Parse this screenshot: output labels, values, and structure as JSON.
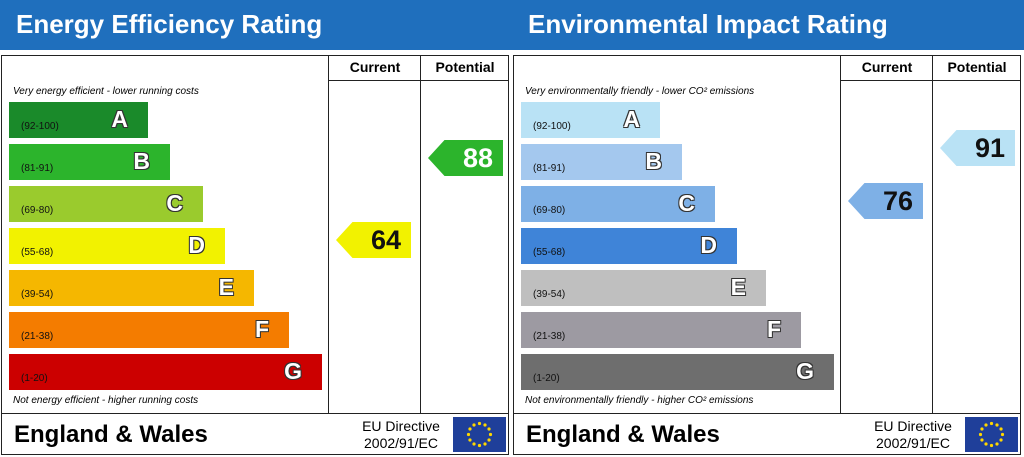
{
  "panels": [
    {
      "title": "Energy Efficiency Rating",
      "columns": [
        "Current",
        "Potential"
      ],
      "top_note": "Very energy efficient - lower running costs",
      "bottom_note": "Not energy efficient - higher running costs",
      "bands": [
        {
          "range": "(92-100)",
          "letter": "A",
          "color": "#1a8a2a"
        },
        {
          "range": "(81-91)",
          "letter": "B",
          "color": "#2cb42c"
        },
        {
          "range": "(69-80)",
          "letter": "C",
          "color": "#9acb2d"
        },
        {
          "range": "(55-68)",
          "letter": "D",
          "color": "#f2f200"
        },
        {
          "range": "(39-54)",
          "letter": "E",
          "color": "#f5b700"
        },
        {
          "range": "(21-38)",
          "letter": "F",
          "color": "#f47c00"
        },
        {
          "range": "(1-20)",
          "letter": "G",
          "color": "#cc0000"
        }
      ],
      "current": 64,
      "potential": 88,
      "region": "England & Wales",
      "directive": [
        "EU Directive",
        "2002/91/EC"
      ]
    },
    {
      "title": "Environmental Impact Rating",
      "columns": [
        "Current",
        "Potential"
      ],
      "top_note": "Very environmentally friendly - lower CO² emissions",
      "bottom_note": "Not environmentally friendly - higher CO² emissions",
      "bands": [
        {
          "range": "(92-100)",
          "letter": "A",
          "color": "#b9e2f5"
        },
        {
          "range": "(81-91)",
          "letter": "B",
          "color": "#a4c8ee"
        },
        {
          "range": "(69-80)",
          "letter": "C",
          "color": "#7eb0e6"
        },
        {
          "range": "(55-68)",
          "letter": "D",
          "color": "#3f84d8"
        },
        {
          "range": "(39-54)",
          "letter": "E",
          "color": "#bfbfbf"
        },
        {
          "range": "(21-38)",
          "letter": "F",
          "color": "#9d9aa2"
        },
        {
          "range": "(1-20)",
          "letter": "G",
          "color": "#6e6e6e"
        }
      ],
      "current": 76,
      "potential": 91,
      "region": "England & Wales",
      "directive": [
        "EU Directive",
        "2002/91/EC"
      ]
    }
  ]
}
